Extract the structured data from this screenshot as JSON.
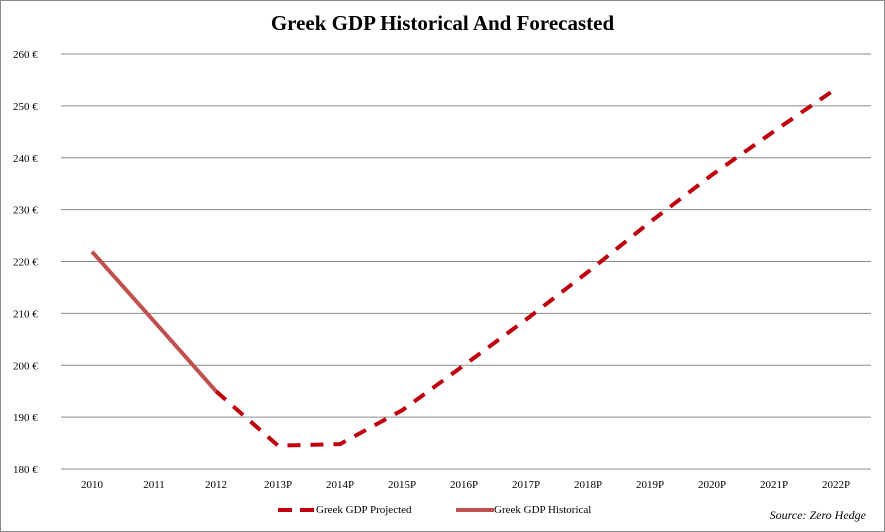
{
  "chart_data": {
    "type": "line",
    "title": "Greek GDP Historical And Forecasted",
    "categories": [
      "2010",
      "2011",
      "2012",
      "2013P",
      "2014P",
      "2015P",
      "2016P",
      "2017P",
      "2018P",
      "2019P",
      "2020P",
      "2021P",
      "2022P"
    ],
    "series": [
      {
        "name": "Greek GDP Projected",
        "style": "dashed",
        "color": "#c0000c",
        "values": [
          null,
          null,
          195.0,
          184.5,
          184.8,
          191.3,
          200.0,
          208.8,
          218.0,
          227.6,
          236.7,
          245.1,
          253.3
        ]
      },
      {
        "name": "Greek GDP Historical",
        "style": "solid",
        "color": "#c0504d",
        "values": [
          221.9,
          208.5,
          195.0,
          null,
          null,
          null,
          null,
          null,
          null,
          null,
          null,
          null,
          null
        ]
      }
    ],
    "ylim": [
      180,
      260
    ],
    "yticks": [
      180,
      190,
      200,
      210,
      220,
      230,
      240,
      250,
      260
    ],
    "ytick_suffix": "€",
    "grid": true,
    "legend": "bottom",
    "source": "Source: Zero Hedge"
  }
}
